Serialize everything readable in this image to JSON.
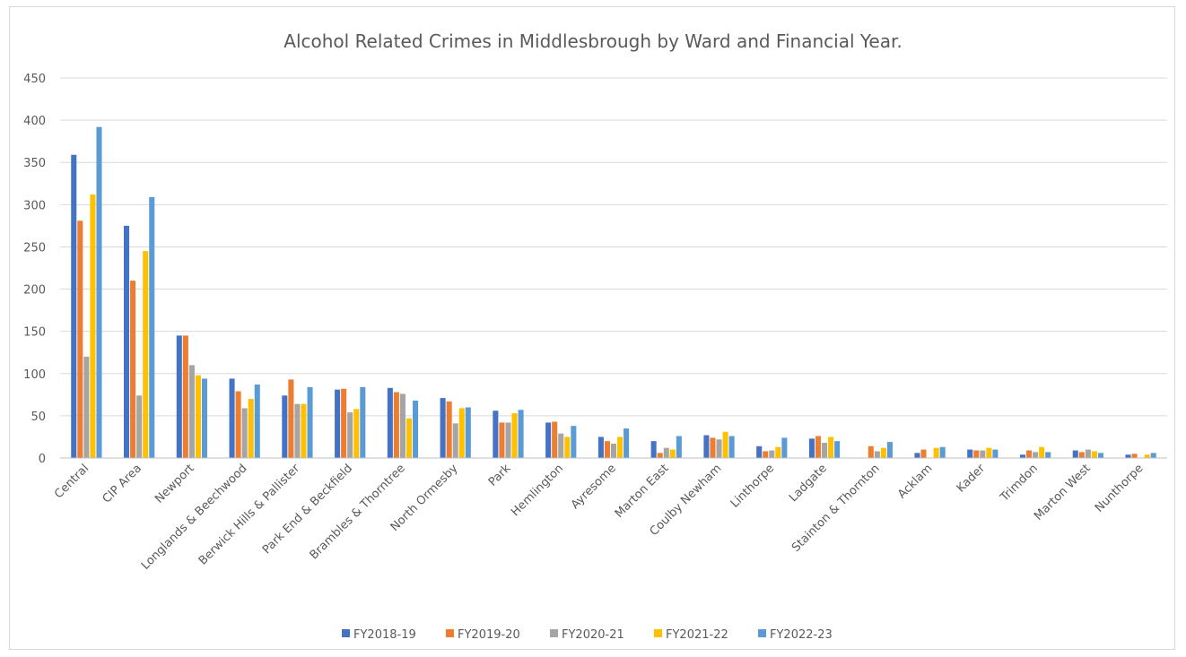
{
  "chart_data": {
    "type": "bar",
    "title": "Alcohol Related Crimes in Middlesbrough by Ward and Financial Year.",
    "xlabel": "",
    "ylabel": "",
    "ylim": [
      0,
      450
    ],
    "yticks": [
      0,
      50,
      100,
      150,
      200,
      250,
      300,
      350,
      400,
      450
    ],
    "grid": true,
    "legend_position": "bottom",
    "categories": [
      "Central",
      "CIP Area",
      "Newport",
      "Longlands & Beechwood",
      "Berwick Hills & Pallister",
      "Park End & Beckfield",
      "Brambles & Thorntree",
      "North Ormesby",
      "Park",
      "Hemlington",
      "Ayresome",
      "Marton East",
      "Coulby Newham",
      "Linthorpe",
      "Ladgate",
      "Stainton & Thornton",
      "Acklam",
      "Kader",
      "Trimdon",
      "Marton West",
      "Nunthorpe"
    ],
    "series": [
      {
        "name": "FY2018-19",
        "color": "#4472c4",
        "values": [
          359,
          275,
          145,
          94,
          74,
          81,
          83,
          71,
          56,
          42,
          25,
          20,
          27,
          14,
          23,
          0,
          6,
          10,
          4,
          9,
          4
        ]
      },
      {
        "name": "FY2019-20",
        "color": "#ed7d31",
        "values": [
          281,
          210,
          145,
          79,
          93,
          82,
          78,
          67,
          42,
          43,
          20,
          6,
          24,
          8,
          26,
          14,
          10,
          9,
          9,
          7,
          5
        ]
      },
      {
        "name": "FY2020-21",
        "color": "#a5a5a5",
        "values": [
          120,
          74,
          110,
          59,
          64,
          54,
          76,
          41,
          42,
          29,
          17,
          12,
          22,
          9,
          18,
          8,
          0,
          9,
          7,
          10,
          0
        ]
      },
      {
        "name": "FY2021-22",
        "color": "#ffc000",
        "values": [
          312,
          245,
          98,
          70,
          64,
          58,
          47,
          59,
          53,
          25,
          25,
          10,
          31,
          13,
          25,
          12,
          12,
          12,
          13,
          8,
          4
        ]
      },
      {
        "name": "FY2022-23",
        "color": "#5b9bd5",
        "values": [
          392,
          309,
          94,
          87,
          84,
          84,
          68,
          60,
          57,
          38,
          35,
          26,
          26,
          24,
          20,
          19,
          13,
          10,
          7,
          6,
          6
        ]
      }
    ]
  }
}
